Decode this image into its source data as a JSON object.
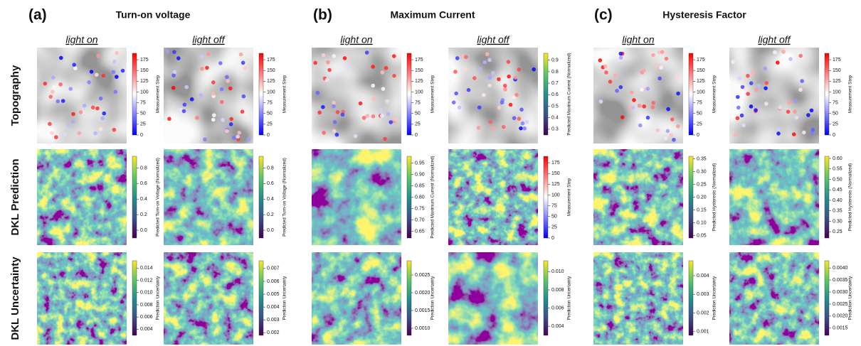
{
  "row_labels": [
    "Topography",
    "DKL Prediction",
    "DKL Uncertainty"
  ],
  "panels": [
    {
      "label": "(a)",
      "title": "Turn-on voltage",
      "columns": [
        {
          "label": "light on",
          "colorbars": [
            {
              "label": "Measurement Step",
              "lim": [
                0,
                190
              ],
              "ticks": [
                0,
                25,
                50,
                75,
                100,
                125,
                150,
                175
              ]
            },
            {
              "label": "Predicted Turn-on Voltage (Normalized)",
              "lim": [
                -0.1,
                0.95
              ],
              "ticks": [
                {
                  "value": 0,
                  "label": "0.0"
                },
                0.2,
                0.4,
                0.6,
                0.8
              ]
            },
            {
              "label": "Prediction Uncertainty",
              "lim": [
                0.003,
                0.0152
              ],
              "ticks": [
                0.004,
                0.006,
                0.008,
                {
                  "value": 0.01,
                  "label": "0.010"
                },
                0.012,
                0.014
              ]
            }
          ]
        },
        {
          "label": "light off",
          "colorbars": [
            {
              "label": "Measurement Step",
              "lim": [
                0,
                190
              ],
              "ticks": [
                0,
                25,
                50,
                75,
                100,
                125,
                150,
                175
              ]
            },
            {
              "label": "Predicted Turn-on Voltage (Normalized)",
              "lim": [
                -0.1,
                0.95
              ],
              "ticks": [
                {
                  "value": 0,
                  "label": "0.0"
                },
                0.2,
                0.4,
                0.6,
                0.8
              ]
            },
            {
              "label": "Prediction Uncertainty",
              "lim": [
                0.0018,
                0.0076
              ],
              "ticks": [
                0.002,
                0.003,
                0.004,
                0.005,
                0.006,
                0.007
              ]
            }
          ]
        }
      ]
    },
    {
      "label": "(b)",
      "title": "Maximum Current",
      "columns": [
        {
          "label": "light on",
          "colorbars": [
            {
              "label": "Measurement Step",
              "lim": [
                0,
                190
              ],
              "ticks": [
                0,
                25,
                50,
                75,
                100,
                125,
                150,
                175
              ]
            },
            {
              "label": "Predicted Maximum Current (Normalized)",
              "lim": [
                0.62,
                0.98
              ],
              "ticks": [
                0.65,
                {
                  "value": 0.7,
                  "label": "0.70"
                },
                0.75,
                {
                  "value": 0.8,
                  "label": "0.80"
                },
                0.85,
                {
                  "value": 0.9,
                  "label": "0.90"
                },
                0.95
              ]
            },
            {
              "label": "Prediction Uncertainty",
              "lim": [
                0.0008,
                0.0029
              ],
              "ticks": [
                {
                  "value": 0.001,
                  "label": "0.0010"
                },
                0.0015,
                {
                  "value": 0.002,
                  "label": "0.0020"
                },
                0.0025
              ]
            }
          ]
        },
        {
          "label": "light off",
          "colorbars": [
            {
              "label": "Predicted Maximum Current (Normalized)",
              "lim": [
                0.25,
                0.96
              ],
              "ticks": [
                0.3,
                0.4,
                0.5,
                0.6,
                0.7,
                0.8,
                0.9
              ]
            },
            {
              "label": "Measurement Step",
              "lim": [
                0,
                190
              ],
              "ticks": [
                0,
                25,
                50,
                75,
                100,
                125,
                150,
                175
              ]
            },
            {
              "label": "Prediction Uncertainty",
              "lim": [
                0.003,
                0.0112
              ],
              "ticks": [
                0.004,
                0.006,
                0.008,
                {
                  "value": 0.01,
                  "label": "0.010"
                }
              ]
            }
          ]
        }
      ]
    },
    {
      "label": "(c)",
      "title": "Hysteresis Factor",
      "columns": [
        {
          "label": "light on",
          "colorbars": [
            {
              "label": "Measurement Step",
              "lim": [
                0,
                190
              ],
              "ticks": [
                0,
                25,
                50,
                75,
                100,
                125,
                150,
                175
              ]
            },
            {
              "label": "Predicted Hysteresis (Normalized)",
              "lim": [
                0.04,
                0.36
              ],
              "ticks": [
                0.05,
                {
                  "value": 0.1,
                  "label": "0.10"
                },
                0.15,
                {
                  "value": 0.2,
                  "label": "0.20"
                },
                0.25,
                {
                  "value": 0.3,
                  "label": "0.30"
                },
                0.35
              ]
            },
            {
              "label": "Prediction Uncertainty",
              "lim": [
                0.0008,
                0.0048
              ],
              "ticks": [
                0.001,
                0.002,
                0.003,
                0.004
              ]
            }
          ]
        },
        {
          "label": "light off",
          "colorbars": [
            {
              "label": "Measurement Step",
              "lim": [
                0,
                190
              ],
              "ticks": [
                0,
                25,
                50,
                75,
                100,
                125,
                150,
                175
              ]
            },
            {
              "label": "Predicted Hysteresis (Normalized)",
              "lim": [
                0.22,
                0.61
              ],
              "ticks": [
                0.25,
                {
                  "value": 0.3,
                  "label": "0.30"
                },
                0.35,
                {
                  "value": 0.4,
                  "label": "0.40"
                },
                0.45,
                {
                  "value": 0.5,
                  "label": "0.50"
                },
                0.55,
                {
                  "value": 0.6,
                  "label": "0.60"
                }
              ]
            },
            {
              "label": "Prediction Uncertainty",
              "lim": [
                0.0012,
                0.0043
              ],
              "ticks": [
                0.0015,
                {
                  "value": 0.002,
                  "label": "0.0020"
                },
                0.0025,
                {
                  "value": 0.003,
                  "label": "0.0030"
                },
                0.0035,
                {
                  "value": 0.004,
                  "label": "0.0040"
                }
              ]
            }
          ]
        }
      ]
    }
  ]
}
